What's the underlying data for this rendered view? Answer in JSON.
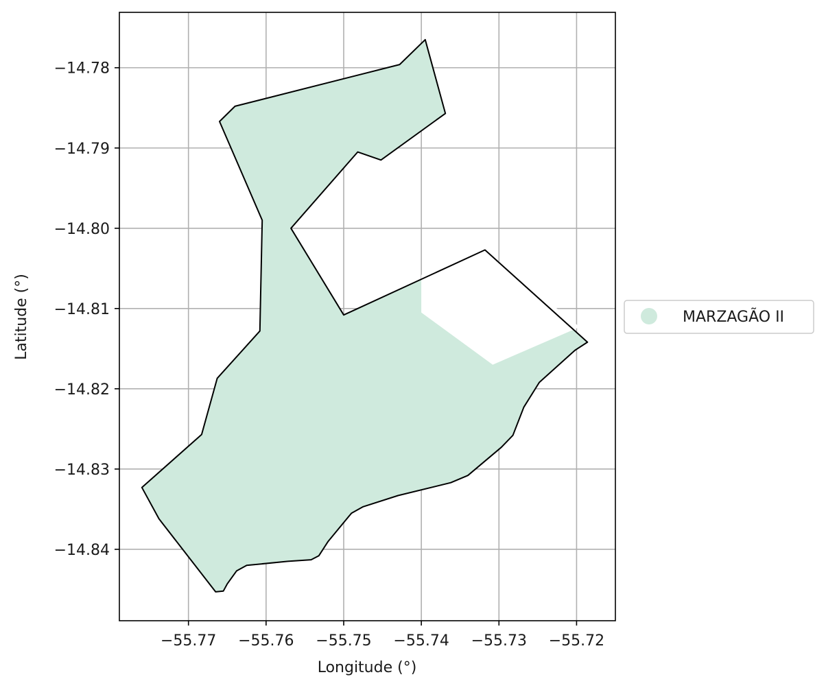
{
  "chart_data": {
    "type": "map",
    "xlabel": "Longitude (°)",
    "ylabel": "Latitude (°)",
    "xlim": [
      -55.7789,
      -55.715
    ],
    "ylim": [
      -14.8489,
      -14.7731
    ],
    "x_ticks": [
      {
        "value": -55.77,
        "label": "−55.77"
      },
      {
        "value": -55.76,
        "label": "−55.76"
      },
      {
        "value": -55.75,
        "label": "−55.75"
      },
      {
        "value": -55.74,
        "label": "−55.74"
      },
      {
        "value": -55.73,
        "label": "−55.73"
      },
      {
        "value": -55.72,
        "label": "−55.72"
      }
    ],
    "y_ticks": [
      {
        "value": -14.78,
        "label": "−14.78"
      },
      {
        "value": -14.79,
        "label": "−14.79"
      },
      {
        "value": -14.8,
        "label": "−14.80"
      },
      {
        "value": -14.81,
        "label": "−14.81"
      },
      {
        "value": -14.82,
        "label": "−14.82"
      },
      {
        "value": -14.83,
        "label": "−14.83"
      },
      {
        "value": -14.84,
        "label": "−14.84"
      }
    ],
    "grid": true,
    "legend": {
      "placement": "right",
      "entries": [
        {
          "label": "MARZAGÃO II",
          "color": "#cfeadd"
        }
      ]
    },
    "regions": [
      {
        "name": "MARZAGÃO II",
        "fill": "#cfeadd",
        "edge": "#000000",
        "outline": [
          [
            -55.7395,
            -14.7765
          ],
          [
            -55.7369,
            -14.7857
          ],
          [
            -55.7452,
            -14.7915
          ],
          [
            -55.7482,
            -14.7905
          ],
          [
            -55.7568,
            -14.8
          ],
          [
            -55.75,
            -14.8108
          ],
          [
            -55.7318,
            -14.8027
          ],
          [
            -55.7186,
            -14.8142
          ],
          [
            -55.7202,
            -14.8152
          ],
          [
            -55.7248,
            -14.8192
          ],
          [
            -55.7268,
            -14.8223
          ],
          [
            -55.7282,
            -14.8258
          ],
          [
            -55.7297,
            -14.8273
          ],
          [
            -55.734,
            -14.8308
          ],
          [
            -55.7362,
            -14.8317
          ],
          [
            -55.743,
            -14.8333
          ],
          [
            -55.7475,
            -14.8347
          ],
          [
            -55.749,
            -14.8355
          ],
          [
            -55.752,
            -14.839
          ],
          [
            -55.7532,
            -14.8408
          ],
          [
            -55.7542,
            -14.8413
          ],
          [
            -55.7572,
            -14.8415
          ],
          [
            -55.7625,
            -14.842
          ],
          [
            -55.7638,
            -14.8427
          ],
          [
            -55.765,
            -14.8443
          ],
          [
            -55.7655,
            -14.8452
          ],
          [
            -55.7665,
            -14.8453
          ],
          [
            -55.7738,
            -14.8362
          ],
          [
            -55.776,
            -14.8323
          ],
          [
            -55.7683,
            -14.8257
          ],
          [
            -55.7663,
            -14.8187
          ],
          [
            -55.7608,
            -14.8128
          ],
          [
            -55.7605,
            -14.799
          ],
          [
            -55.766,
            -14.7867
          ],
          [
            -55.764,
            -14.7848
          ],
          [
            -55.7428,
            -14.7796
          ]
        ],
        "interior_gaps": [
          [
            [
              -55.74,
              -14.8058
            ],
            [
              -55.7318,
              -14.8027
            ],
            [
              -55.7196,
              -14.8123
            ],
            [
              -55.7308,
              -14.817
            ],
            [
              -55.74,
              -14.8105
            ]
          ]
        ]
      }
    ]
  }
}
